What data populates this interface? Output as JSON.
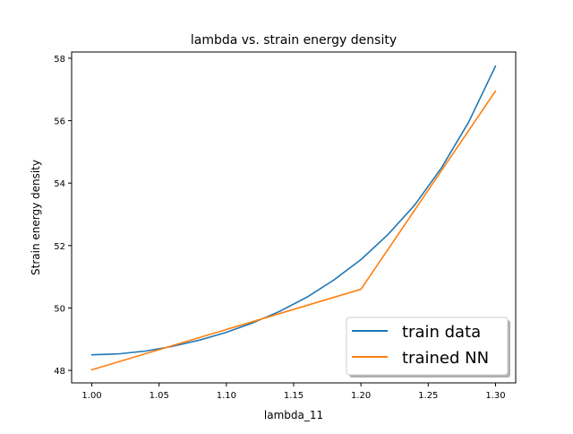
{
  "chart_data": {
    "type": "line",
    "title": "lambda vs. strain energy density",
    "xlabel": "lambda_11",
    "ylabel": "Strain energy density",
    "xlim": [
      0.985,
      1.315
    ],
    "ylim": [
      47.6,
      58.2
    ],
    "xticks": [
      1.0,
      1.05,
      1.1,
      1.15,
      1.2,
      1.25,
      1.3
    ],
    "xtick_labels": [
      "1.00",
      "1.05",
      "1.10",
      "1.15",
      "1.20",
      "1.25",
      "1.30"
    ],
    "yticks": [
      48,
      50,
      52,
      54,
      56,
      58
    ],
    "ytick_labels": [
      "48",
      "50",
      "52",
      "54",
      "56",
      "58"
    ],
    "grid": false,
    "legend_position": "lower-right",
    "series": [
      {
        "name": "train data",
        "color": "#1f77b4",
        "x": [
          1.0,
          1.02,
          1.04,
          1.06,
          1.08,
          1.1,
          1.12,
          1.14,
          1.16,
          1.18,
          1.2,
          1.22,
          1.24,
          1.26,
          1.28,
          1.3
        ],
        "y": [
          48.5,
          48.53,
          48.62,
          48.77,
          48.97,
          49.22,
          49.53,
          49.9,
          50.35,
          50.9,
          51.55,
          52.35,
          53.3,
          54.5,
          55.95,
          57.75
        ]
      },
      {
        "name": "trained NN",
        "color": "#ff7f0e",
        "x": [
          1.0,
          1.2,
          1.3
        ],
        "y": [
          48.02,
          50.6,
          56.95
        ]
      }
    ]
  }
}
